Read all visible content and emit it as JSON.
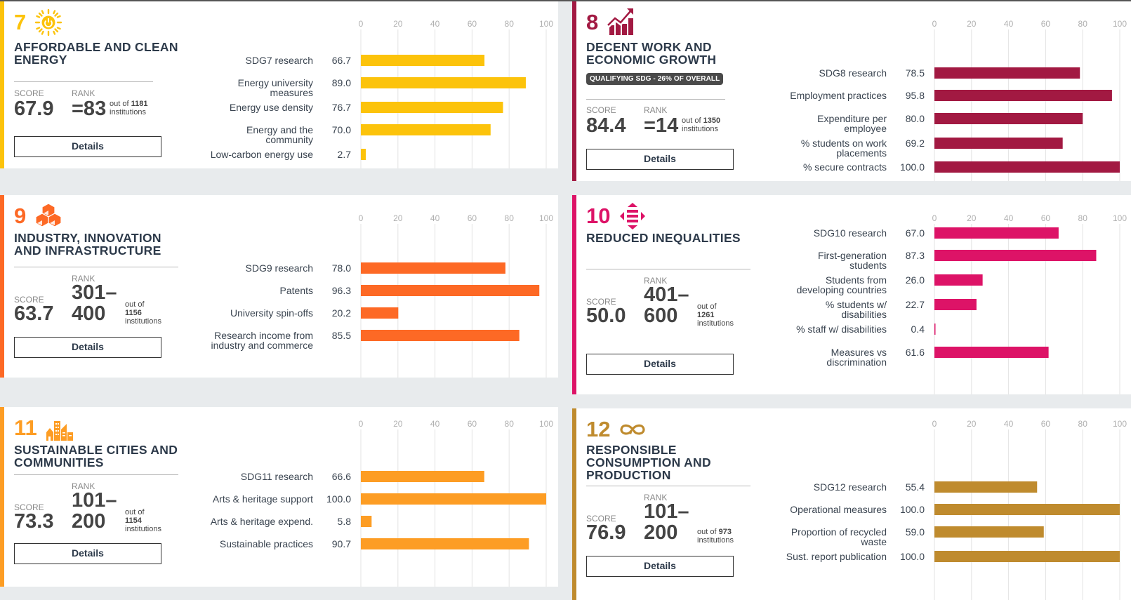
{
  "cards": [
    {
      "id": "sdg7",
      "number": "7",
      "icon": "sun-power-icon",
      "color": "#fcc30b",
      "title_lines": [
        "AFFORDABLE AND CLEAN",
        "ENERGY"
      ],
      "badge": null,
      "score_label": "SCORE",
      "score": "67.9",
      "rank_label": "RANK",
      "rank_lines": [
        "=83"
      ],
      "out_of_prefix": "out of",
      "out_of_count": "1181",
      "out_of_suffix": "institutions",
      "details_label": "Details"
    },
    {
      "id": "sdg8",
      "number": "8",
      "icon": "growth-chart-icon",
      "color": "#a21942",
      "title_lines": [
        "DECENT WORK AND",
        "ECONOMIC GROWTH"
      ],
      "badge": "QUALIFYING SDG - 26% OF OVERALL",
      "score_label": "SCORE",
      "score": "84.4",
      "rank_label": "RANK",
      "rank_lines": [
        "=14"
      ],
      "out_of_prefix": "out of",
      "out_of_count": "1350",
      "out_of_suffix": "institutions",
      "details_label": "Details"
    },
    {
      "id": "sdg9",
      "number": "9",
      "icon": "cubes-icon",
      "color": "#fd6925",
      "title_lines": [
        "INDUSTRY, INNOVATION",
        "AND INFRASTRUCTURE"
      ],
      "badge": null,
      "score_label": "SCORE",
      "score": "63.7",
      "rank_label": "RANK",
      "rank_lines": [
        "301–",
        "400"
      ],
      "out_of_prefix": "out of",
      "out_of_count": "1156",
      "out_of_suffix": "institutions",
      "details_label": "Details"
    },
    {
      "id": "sdg10",
      "number": "10",
      "icon": "equality-arrows-icon",
      "color": "#dd1367",
      "title_lines": [
        "REDUCED INEQUALITIES"
      ],
      "badge": null,
      "score_label": "SCORE",
      "score": "50.0",
      "rank_label": "RANK",
      "rank_lines": [
        "401–",
        "600"
      ],
      "out_of_prefix": "out of",
      "out_of_count": "1261",
      "out_of_suffix": "institutions",
      "details_label": "Details"
    },
    {
      "id": "sdg11",
      "number": "11",
      "icon": "city-buildings-icon",
      "color": "#fd9d24",
      "title_lines": [
        "SUSTAINABLE CITIES AND",
        "COMMUNITIES"
      ],
      "badge": null,
      "score_label": "SCORE",
      "score": "73.3",
      "rank_label": "RANK",
      "rank_lines": [
        "101–",
        "200"
      ],
      "out_of_prefix": "out of",
      "out_of_count": "1154",
      "out_of_suffix": "institutions",
      "details_label": "Details"
    },
    {
      "id": "sdg12",
      "number": "12",
      "icon": "infinity-loop-icon",
      "color": "#bf8b2e",
      "title_lines": [
        "RESPONSIBLE",
        "CONSUMPTION AND",
        "PRODUCTION"
      ],
      "badge": null,
      "score_label": "SCORE",
      "score": "76.9",
      "rank_label": "RANK",
      "rank_lines": [
        "101–",
        "200"
      ],
      "out_of_prefix": "out of",
      "out_of_count": "973",
      "out_of_suffix": "institutions",
      "details_label": "Details"
    }
  ],
  "chart_data": [
    {
      "type": "bar",
      "orientation": "horizontal",
      "sdg": "7",
      "color": "#fcc30b",
      "xlim": [
        0,
        100
      ],
      "ticks": [
        "0",
        "20",
        "40",
        "60",
        "80",
        "100"
      ],
      "grid": true,
      "categories": [
        [
          "SDG7 research"
        ],
        [
          "Energy university",
          "measures"
        ],
        [
          "Energy use density"
        ],
        [
          "Energy and the",
          "community"
        ],
        [
          "Low-carbon energy use"
        ]
      ],
      "values": [
        66.7,
        89.0,
        76.7,
        70.0,
        2.7
      ],
      "value_labels": [
        "66.7",
        "89.0",
        "76.7",
        "70.0",
        "2.7"
      ]
    },
    {
      "type": "bar",
      "orientation": "horizontal",
      "sdg": "8",
      "color": "#a21942",
      "xlim": [
        0,
        100
      ],
      "ticks": [
        "0",
        "20",
        "40",
        "60",
        "80",
        "100"
      ],
      "grid": true,
      "categories": [
        [
          "SDG8 research"
        ],
        [
          "Employment practices"
        ],
        [
          "Expenditure per",
          "employee"
        ],
        [
          "% students on work",
          "placements"
        ],
        [
          "% secure contracts"
        ]
      ],
      "values": [
        78.5,
        95.8,
        80.0,
        69.2,
        100.0
      ],
      "value_labels": [
        "78.5",
        "95.8",
        "80.0",
        "69.2",
        "100.0"
      ]
    },
    {
      "type": "bar",
      "orientation": "horizontal",
      "sdg": "9",
      "color": "#fd6925",
      "xlim": [
        0,
        100
      ],
      "ticks": [
        "0",
        "20",
        "40",
        "60",
        "80",
        "100"
      ],
      "grid": true,
      "categories": [
        [
          "SDG9 research"
        ],
        [
          "Patents"
        ],
        [
          "University spin-offs"
        ],
        [
          "Research income from",
          "industry and commerce"
        ]
      ],
      "values": [
        78.0,
        96.3,
        20.2,
        85.5
      ],
      "value_labels": [
        "78.0",
        "96.3",
        "20.2",
        "85.5"
      ]
    },
    {
      "type": "bar",
      "orientation": "horizontal",
      "sdg": "10",
      "color": "#dd1367",
      "xlim": [
        0,
        100
      ],
      "ticks": [
        "0",
        "20",
        "40",
        "60",
        "80",
        "100"
      ],
      "grid": true,
      "categories": [
        [
          "SDG10 research"
        ],
        [
          "First-generation",
          "students"
        ],
        [
          "Students from",
          "developing countries"
        ],
        [
          "% students w/",
          "disabilities"
        ],
        [
          "% staff w/ disabilities"
        ],
        [
          "Measures vs",
          "discrimination"
        ]
      ],
      "values": [
        67.0,
        87.3,
        26.0,
        22.7,
        0.4,
        61.6
      ],
      "value_labels": [
        "67.0",
        "87.3",
        "26.0",
        "22.7",
        "0.4",
        "61.6"
      ]
    },
    {
      "type": "bar",
      "orientation": "horizontal",
      "sdg": "11",
      "color": "#fd9d24",
      "xlim": [
        0,
        100
      ],
      "ticks": [
        "0",
        "20",
        "40",
        "60",
        "80",
        "100"
      ],
      "grid": true,
      "categories": [
        [
          "SDG11 research"
        ],
        [
          "Arts & heritage support"
        ],
        [
          "Arts & heritage expend."
        ],
        [
          "Sustainable practices"
        ]
      ],
      "values": [
        66.6,
        100.0,
        5.8,
        90.7
      ],
      "value_labels": [
        "66.6",
        "100.0",
        "5.8",
        "90.7"
      ]
    },
    {
      "type": "bar",
      "orientation": "horizontal",
      "sdg": "12",
      "color": "#bf8b2e",
      "xlim": [
        0,
        100
      ],
      "ticks": [
        "0",
        "20",
        "40",
        "60",
        "80",
        "100"
      ],
      "grid": true,
      "categories": [
        [
          "SDG12 research"
        ],
        [
          "Operational measures"
        ],
        [
          "Proportion of recycled",
          "waste"
        ],
        [
          "Sust. report publication"
        ]
      ],
      "values": [
        55.4,
        100.0,
        59.0,
        100.0
      ],
      "value_labels": [
        "55.4",
        "100.0",
        "59.0",
        "100.0"
      ]
    }
  ]
}
